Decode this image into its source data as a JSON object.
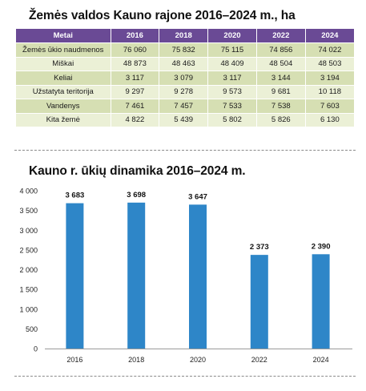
{
  "table": {
    "title": "Žemės valdos Kauno rajone 2016–2024 m., ha",
    "header": [
      "Metai",
      "2016",
      "2018",
      "2020",
      "2022",
      "2024"
    ],
    "rows": [
      {
        "label": "Žemės ūkio naudmenos",
        "values": [
          "76 060",
          "75 832",
          "75 115",
          "74 856",
          "74 022"
        ]
      },
      {
        "label": "Miškai",
        "values": [
          "48 873",
          "48 463",
          "48 409",
          "48 504",
          "48 503"
        ]
      },
      {
        "label": "Keliai",
        "values": [
          "3 117",
          "3 079",
          "3 117",
          "3 144",
          "3 194"
        ]
      },
      {
        "label": "Užstatyta teritorija",
        "values": [
          "9 297",
          "9 278",
          "9 573",
          "9 681",
          "10 118"
        ]
      },
      {
        "label": "Vandenys",
        "values": [
          "7 461",
          "7 457",
          "7 533",
          "7 538",
          "7 603"
        ]
      },
      {
        "label": "Kita žemė",
        "values": [
          "4 822",
          "5 439",
          "5 802",
          "5 826",
          "6 130"
        ]
      }
    ],
    "colors": {
      "header_bg": "#6a4a95",
      "row_odd": "#d6dfb3",
      "row_even": "#ebf0d6"
    }
  },
  "chart_data": {
    "type": "bar",
    "title": "Kauno r. ūkių dinamika 2016–2024 m.",
    "categories": [
      "2016",
      "2018",
      "2020",
      "2022",
      "2024"
    ],
    "values": [
      3683,
      3698,
      3647,
      2373,
      2390
    ],
    "value_labels": [
      "3 683",
      "3 698",
      "3 647",
      "2 373",
      "2 390"
    ],
    "ylim": [
      0,
      4000
    ],
    "yticks": [
      0,
      500,
      1000,
      1500,
      2000,
      2500,
      3000,
      3500,
      4000
    ],
    "ytick_labels": [
      "0",
      "500",
      "1 000",
      "1 500",
      "2 000",
      "2 500",
      "3 000",
      "3 500",
      "4 000"
    ],
    "xlabel": "",
    "ylabel": "",
    "grid": false,
    "bar_color": "#2e86c8"
  }
}
